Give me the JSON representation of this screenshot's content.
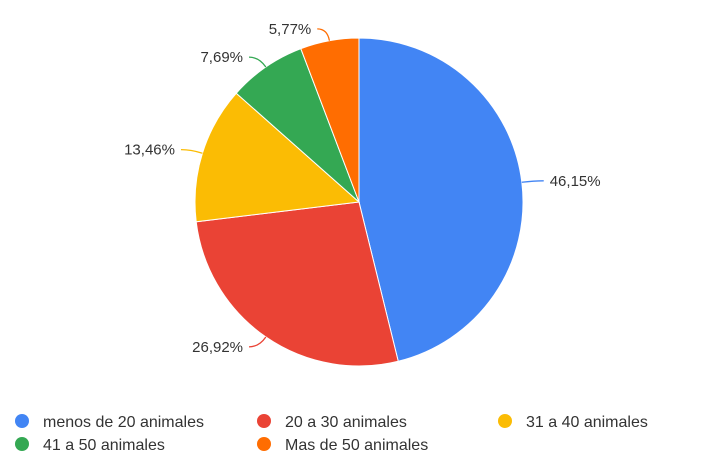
{
  "chart_data": {
    "type": "pie",
    "categories": [
      "menos de 20 animales",
      "20 a 30 animales",
      "31 a 40 animales",
      "41 a 50 animales",
      "Mas de 50 animales"
    ],
    "values": [
      46.15,
      26.92,
      13.46,
      7.69,
      5.77
    ],
    "data_labels": [
      "46,15%",
      "26,92%",
      "13,46%",
      "7,69%",
      "5,77%"
    ],
    "colors": [
      "#4285F4",
      "#EA4335",
      "#FBBC04",
      "#34A853",
      "#FF6D01"
    ],
    "legend_placement": "bottom",
    "title": ""
  }
}
